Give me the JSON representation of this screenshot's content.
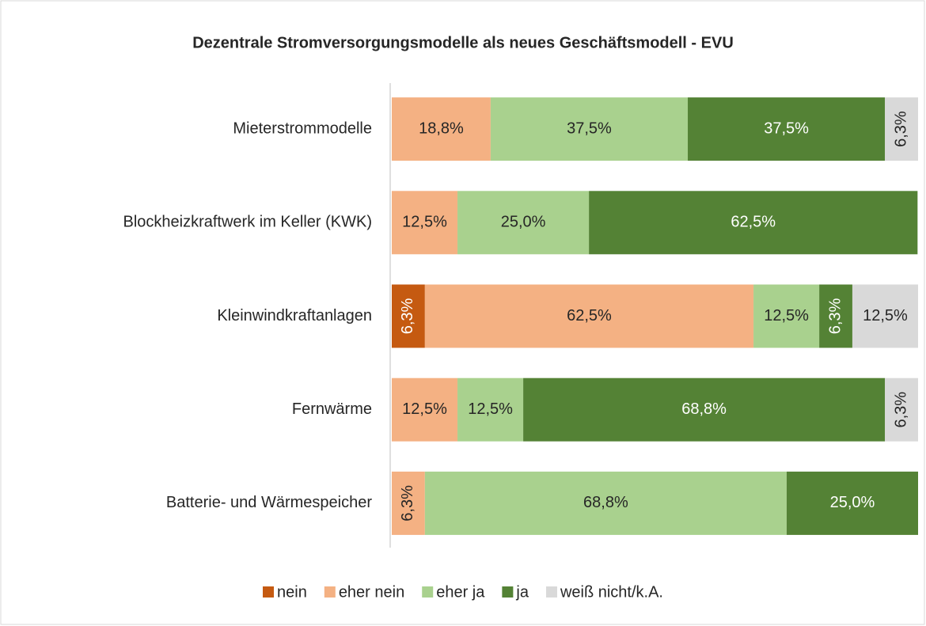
{
  "chart_data": {
    "type": "stacked-barh",
    "title": "Dezentrale Stromversorgungsmodelle als neues Geschäftsmodell - EVU",
    "categories": [
      "Mieterstrommodelle",
      "Blockheizkraftwerk im Keller (KWK)",
      "Kleinwindkraftanlagen",
      "Fernwärme",
      "Batterie- und Wärmespeicher"
    ],
    "series": [
      {
        "name": "nein",
        "color": "#c55a11",
        "values": [
          null,
          null,
          6.3,
          null,
          null
        ],
        "value_labels": [
          null,
          null,
          "6,3%",
          null,
          null
        ]
      },
      {
        "name": "eher nein",
        "color": "#f4b183",
        "values": [
          18.8,
          12.5,
          62.5,
          12.5,
          6.3
        ],
        "value_labels": [
          "18,8%",
          "12,5%",
          "62,5%",
          "12,5%",
          "6,3%"
        ]
      },
      {
        "name": "eher ja",
        "color": "#a9d18e",
        "values": [
          37.5,
          25.0,
          12.5,
          12.5,
          68.8
        ],
        "value_labels": [
          "37,5%",
          "25,0%",
          "12,5%",
          "12,5%",
          "68,8%"
        ]
      },
      {
        "name": "ja",
        "color": "#548235",
        "values": [
          37.5,
          62.5,
          6.3,
          68.8,
          25.0
        ],
        "value_labels": [
          "37,5%",
          "62,5%",
          "6,3%",
          "68,8%",
          "25,0%"
        ]
      },
      {
        "name": "weiß nicht/k.A.",
        "color": "#d9d9d9",
        "values": [
          6.3,
          null,
          12.5,
          6.3,
          null
        ],
        "value_labels": [
          "6,3%",
          null,
          "12,5%",
          "6,3%",
          null
        ]
      }
    ],
    "legend": "bottom"
  }
}
